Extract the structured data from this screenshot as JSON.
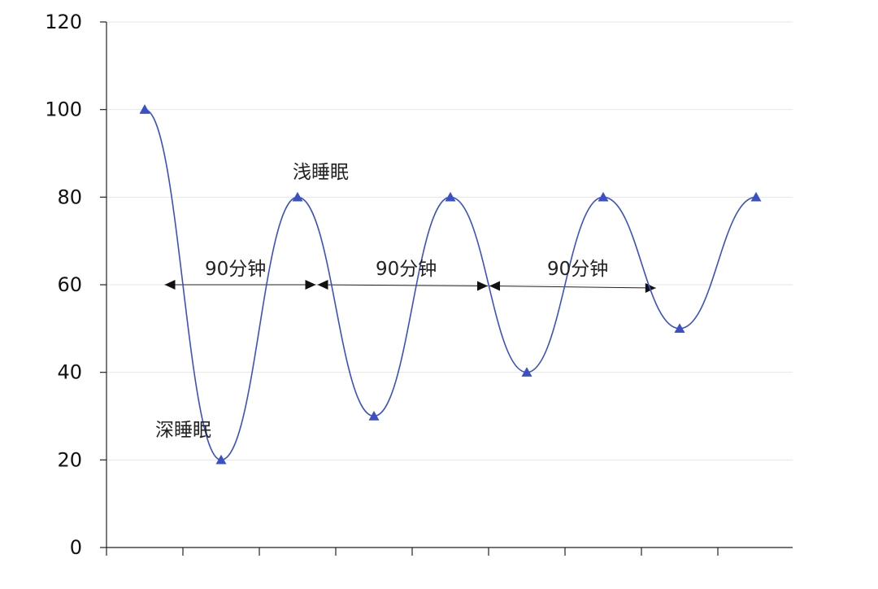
{
  "chart_data": {
    "type": "line",
    "x": [
      1,
      2,
      3,
      4,
      5,
      6,
      7,
      8,
      9
    ],
    "values": [
      100,
      20,
      80,
      30,
      80,
      40,
      80,
      50,
      80
    ],
    "ylim": [
      0,
      120
    ],
    "yticks": [
      "0",
      "20",
      "40",
      "60",
      "80",
      "100",
      "120"
    ],
    "xlabel": "",
    "ylabel": "",
    "grid": true,
    "color": "#3b50c4",
    "marker": "triangle",
    "annotations": {
      "deep_sleep": "深睡眠",
      "light_sleep": "浅睡眠",
      "cycle_labels": [
        "90分钟",
        "90分钟",
        "90分钟"
      ]
    },
    "cycle_spans_x": [
      [
        1.25,
        3.25
      ],
      [
        3.25,
        5.5
      ],
      [
        5.5,
        7.7
      ]
    ]
  }
}
